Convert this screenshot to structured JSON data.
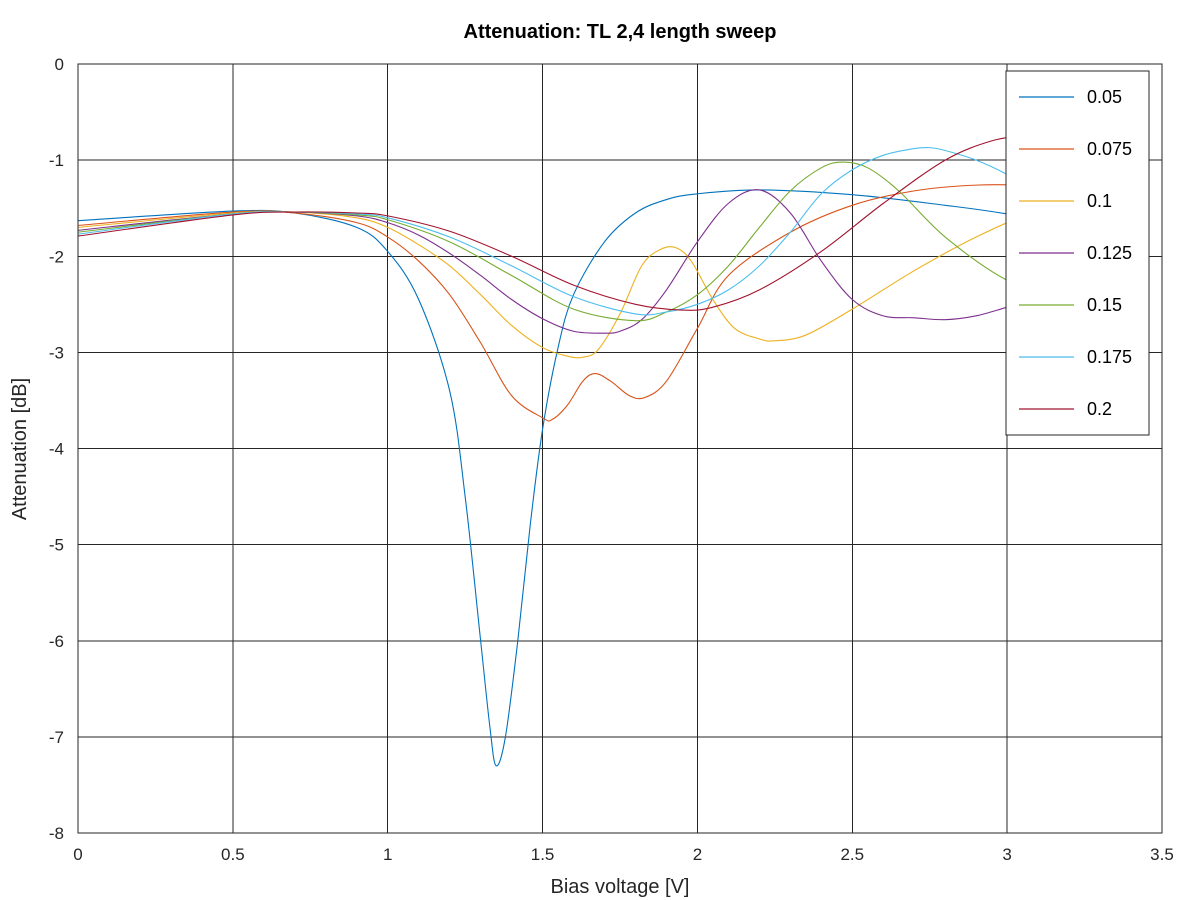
{
  "chart_data": {
    "type": "line",
    "title": "Attenuation: TL 2,4 length sweep",
    "xlabel": "Bias voltage [V]",
    "ylabel": "Attenuation [dB]",
    "xlim": [
      0,
      3.5
    ],
    "ylim": [
      -8,
      0
    ],
    "xticks": [
      0,
      0.5,
      1,
      1.5,
      2,
      2.5,
      3,
      3.5
    ],
    "xtick_labels": [
      "0",
      "0.5",
      "1",
      "1.5",
      "2",
      "2.5",
      "3",
      "3.5"
    ],
    "yticks": [
      0,
      -1,
      -2,
      -3,
      -4,
      -5,
      -6,
      -7,
      -8
    ],
    "ytick_labels": [
      "0",
      "-1",
      "-2",
      "-3",
      "-4",
      "-5",
      "-6",
      "-7",
      "-8"
    ],
    "grid": true,
    "legend_position": "top-right",
    "series": [
      {
        "name": "0.05",
        "color": "#0072bd",
        "x": [
          0,
          0.5,
          0.7,
          0.9,
          1.0,
          1.1,
          1.2,
          1.25,
          1.3,
          1.33,
          1.35,
          1.38,
          1.42,
          1.46,
          1.5,
          1.55,
          1.6,
          1.7,
          1.8,
          1.9,
          2.0,
          2.2,
          2.5,
          2.8,
          3.0,
          3.3
        ],
        "y": [
          -1.63,
          -1.53,
          -1.55,
          -1.7,
          -1.95,
          -2.45,
          -3.4,
          -4.5,
          -6.0,
          -6.9,
          -7.3,
          -7.0,
          -6.0,
          -4.8,
          -3.8,
          -2.95,
          -2.4,
          -1.85,
          -1.55,
          -1.41,
          -1.35,
          -1.31,
          -1.36,
          -1.47,
          -1.56,
          -1.74
        ]
      },
      {
        "name": "0.075",
        "color": "#d95319",
        "x": [
          0,
          0.5,
          0.7,
          0.9,
          1.0,
          1.1,
          1.2,
          1.3,
          1.4,
          1.5,
          1.53,
          1.58,
          1.63,
          1.67,
          1.72,
          1.78,
          1.83,
          1.9,
          2.0,
          2.1,
          2.3,
          2.5,
          2.7,
          2.9,
          3.1,
          3.3
        ],
        "y": [
          -1.68,
          -1.54,
          -1.55,
          -1.65,
          -1.8,
          -2.05,
          -2.4,
          -2.9,
          -3.45,
          -3.68,
          -3.7,
          -3.55,
          -3.3,
          -3.22,
          -3.3,
          -3.45,
          -3.47,
          -3.3,
          -2.75,
          -2.2,
          -1.75,
          -1.47,
          -1.32,
          -1.26,
          -1.27,
          -1.34
        ]
      },
      {
        "name": "0.1",
        "color": "#edb120",
        "x": [
          0,
          0.5,
          0.7,
          0.9,
          1.0,
          1.1,
          1.2,
          1.3,
          1.4,
          1.5,
          1.58,
          1.63,
          1.68,
          1.75,
          1.82,
          1.88,
          1.93,
          1.98,
          2.05,
          2.12,
          2.2,
          2.25,
          2.35,
          2.5,
          2.7,
          2.9,
          3.1,
          3.3
        ],
        "y": [
          -1.7,
          -1.55,
          -1.54,
          -1.6,
          -1.7,
          -1.88,
          -2.1,
          -2.4,
          -2.72,
          -2.95,
          -3.04,
          -3.05,
          -2.97,
          -2.6,
          -2.1,
          -1.93,
          -1.91,
          -2.05,
          -2.45,
          -2.75,
          -2.86,
          -2.88,
          -2.82,
          -2.55,
          -2.15,
          -1.8,
          -1.52,
          -1.34
        ]
      },
      {
        "name": "0.125",
        "color": "#7e2f8e",
        "x": [
          0,
          0.5,
          0.7,
          0.9,
          1.0,
          1.1,
          1.2,
          1.3,
          1.4,
          1.5,
          1.6,
          1.7,
          1.75,
          1.82,
          1.9,
          2.0,
          2.1,
          2.2,
          2.3,
          2.4,
          2.5,
          2.6,
          2.7,
          2.8,
          2.9,
          3.0,
          3.1,
          3.2,
          3.3
        ],
        "y": [
          -1.73,
          -1.56,
          -1.54,
          -1.58,
          -1.65,
          -1.78,
          -1.97,
          -2.2,
          -2.45,
          -2.65,
          -2.78,
          -2.8,
          -2.78,
          -2.66,
          -2.35,
          -1.85,
          -1.45,
          -1.31,
          -1.55,
          -2.05,
          -2.45,
          -2.62,
          -2.64,
          -2.66,
          -2.62,
          -2.53,
          -2.44,
          -2.35,
          -2.21
        ]
      },
      {
        "name": "0.15",
        "color": "#77ac30",
        "x": [
          0,
          0.5,
          0.7,
          0.9,
          1.0,
          1.2,
          1.4,
          1.6,
          1.8,
          1.9,
          2.0,
          2.1,
          2.2,
          2.3,
          2.4,
          2.47,
          2.55,
          2.65,
          2.8,
          3.0,
          3.2,
          3.3
        ],
        "y": [
          -1.75,
          -1.56,
          -1.54,
          -1.57,
          -1.62,
          -1.85,
          -2.2,
          -2.55,
          -2.67,
          -2.58,
          -2.4,
          -2.1,
          -1.7,
          -1.32,
          -1.08,
          -1.02,
          -1.08,
          -1.32,
          -1.8,
          -2.25,
          -2.47,
          -2.52
        ]
      },
      {
        "name": "0.175",
        "color": "#4dbeee",
        "x": [
          0,
          0.5,
          0.7,
          0.9,
          1.0,
          1.2,
          1.4,
          1.6,
          1.8,
          1.9,
          2.0,
          2.1,
          2.2,
          2.3,
          2.4,
          2.5,
          2.6,
          2.7,
          2.75,
          2.8,
          2.9,
          3.0,
          3.1,
          3.2,
          3.3
        ],
        "y": [
          -1.77,
          -1.56,
          -1.54,
          -1.56,
          -1.6,
          -1.8,
          -2.1,
          -2.42,
          -2.6,
          -2.58,
          -2.5,
          -2.35,
          -2.1,
          -1.75,
          -1.35,
          -1.1,
          -0.95,
          -0.88,
          -0.87,
          -0.9,
          -1.0,
          -1.15,
          -1.35,
          -1.55,
          -1.74
        ]
      },
      {
        "name": "0.2",
        "color": "#a2142f",
        "x": [
          0,
          0.5,
          0.7,
          0.9,
          1.0,
          1.2,
          1.4,
          1.6,
          1.8,
          1.95,
          2.05,
          2.2,
          2.4,
          2.6,
          2.8,
          2.95,
          3.05,
          3.15,
          3.25,
          3.3
        ],
        "y": [
          -1.79,
          -1.57,
          -1.54,
          -1.55,
          -1.58,
          -1.74,
          -2.0,
          -2.3,
          -2.5,
          -2.56,
          -2.53,
          -2.35,
          -1.95,
          -1.45,
          -1.0,
          -0.8,
          -0.76,
          -0.8,
          -0.88,
          -0.93
        ]
      }
    ]
  }
}
